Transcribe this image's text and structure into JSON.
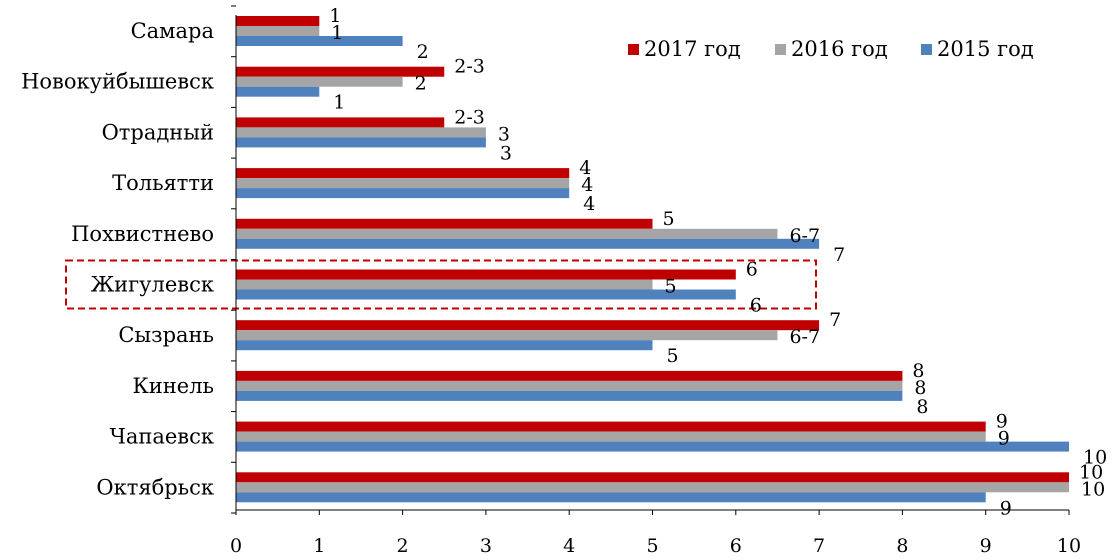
{
  "chart_data": {
    "type": "bar",
    "orientation": "horizontal",
    "categories": [
      "Самара",
      "Новокуйбышевск",
      "Отрадный",
      "Тольятти",
      "Похвистнево",
      "Жигулевск",
      "Сызрань",
      "Кинель",
      "Чапаевск",
      "Октябрьск"
    ],
    "series": [
      {
        "name": "2017 год",
        "color": "#c00000",
        "values": [
          1,
          2.5,
          2.5,
          4,
          5,
          6,
          7,
          8,
          9,
          10
        ],
        "labels": [
          "1",
          "2-3",
          "2-3",
          "4",
          "5",
          "6",
          "7",
          "8",
          "9",
          "10"
        ]
      },
      {
        "name": "2016 год",
        "color": "#a5a5a5",
        "values": [
          1,
          2,
          3,
          4,
          6.5,
          5,
          6.5,
          8,
          9,
          10
        ],
        "labels": [
          "1",
          "2",
          "3",
          "4",
          "6-7",
          "5",
          "6-7",
          "8",
          "9",
          "10"
        ]
      },
      {
        "name": "2015 год",
        "color": "#4f81bd",
        "values": [
          2,
          1,
          3,
          4,
          7,
          6,
          5,
          8,
          10,
          9
        ],
        "labels": [
          "2",
          "1",
          "3",
          "4",
          "7",
          "6",
          "5",
          "8",
          "10",
          "9"
        ]
      }
    ],
    "xlim": [
      0,
      10
    ],
    "xticks": [
      "0",
      "1",
      "2",
      "3",
      "4",
      "5",
      "6",
      "7",
      "8",
      "9",
      "10"
    ],
    "grid": false,
    "legend_position": "top-right",
    "highlighted_category": "Жигулевск",
    "highlight_color": "#c00000"
  }
}
